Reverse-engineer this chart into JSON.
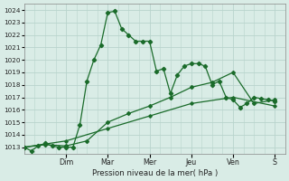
{
  "xlabel": "Pression niveau de la mer( hPa )",
  "bg_color": "#d9ece6",
  "grid_color": "#b8d4cc",
  "line_color": "#1a6b2a",
  "ylim": [
    1012.5,
    1024.5
  ],
  "yticks": [
    1013,
    1014,
    1015,
    1016,
    1017,
    1018,
    1019,
    1020,
    1021,
    1022,
    1023,
    1024
  ],
  "day_labels": [
    "Dim",
    "Mar",
    "Mer",
    "Jeu",
    "Ven",
    "S"
  ],
  "day_positions": [
    24,
    48,
    72,
    96,
    120,
    144
  ],
  "xlim": [
    0,
    150
  ],
  "series1_x": [
    0,
    4,
    8,
    12,
    16,
    20,
    24,
    28,
    32,
    36,
    40,
    44,
    48,
    52,
    56,
    60,
    64,
    68,
    72,
    76,
    80,
    84,
    88,
    92,
    96,
    100,
    104,
    108,
    112,
    116,
    120,
    124,
    128,
    132,
    136,
    140,
    144
  ],
  "series1_y": [
    1013.0,
    1012.7,
    1013.1,
    1013.3,
    1013.1,
    1013.0,
    1013.0,
    1013.0,
    1014.8,
    1018.3,
    1020.0,
    1021.2,
    1023.8,
    1023.9,
    1022.5,
    1022.0,
    1021.5,
    1021.5,
    1021.5,
    1019.1,
    1019.3,
    1017.3,
    1018.8,
    1019.5,
    1019.7,
    1019.7,
    1019.5,
    1018.0,
    1018.3,
    1017.0,
    1016.8,
    1016.2,
    1016.5,
    1017.0,
    1016.9,
    1016.8,
    1016.7
  ],
  "series2_x": [
    0,
    12,
    24,
    36,
    48,
    60,
    72,
    84,
    96,
    108,
    120,
    132,
    144
  ],
  "series2_y": [
    1013.0,
    1013.2,
    1013.1,
    1013.5,
    1015.0,
    1015.7,
    1016.3,
    1017.0,
    1017.8,
    1018.2,
    1019.0,
    1016.5,
    1016.8
  ],
  "series3_x": [
    0,
    24,
    48,
    72,
    96,
    120,
    144
  ],
  "series3_y": [
    1013.0,
    1013.5,
    1014.5,
    1015.5,
    1016.5,
    1017.0,
    1016.3
  ]
}
